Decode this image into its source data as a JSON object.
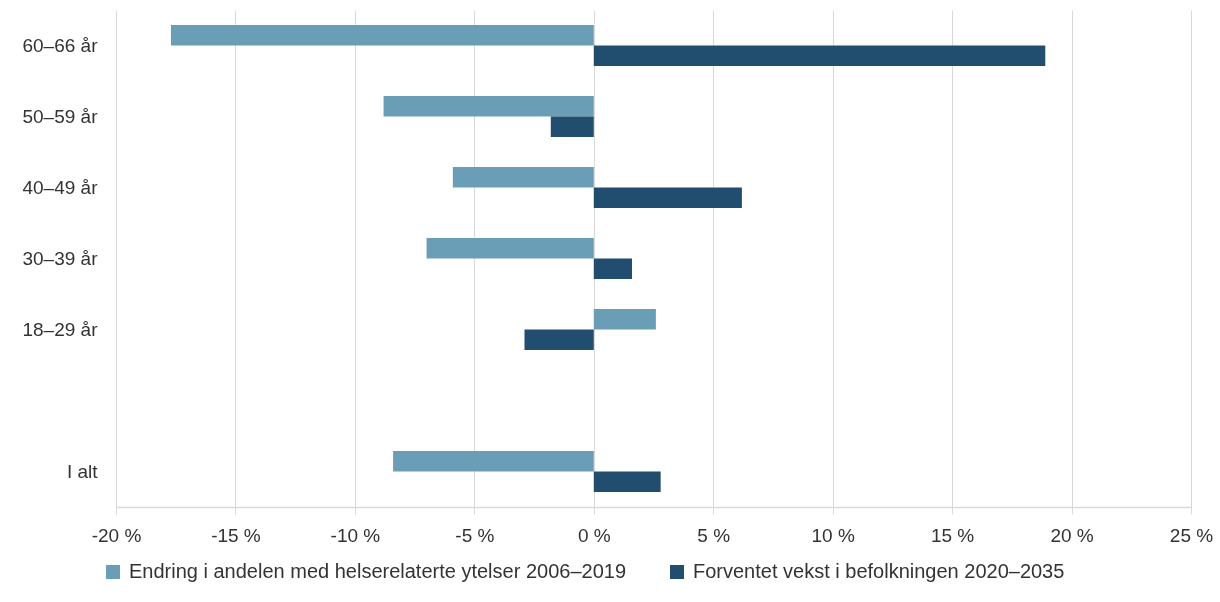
{
  "chart_data": {
    "type": "bar",
    "orientation": "horizontal",
    "categories": [
      "60–66 år",
      "50–59 år",
      "40–49 år",
      "30–39 år",
      "18–29 år",
      null,
      "I alt"
    ],
    "series": [
      {
        "name": "Endring i andelen med helserelaterte ytelser 2006–2019",
        "color": "#6a9db6",
        "values": [
          -17.7,
          -8.8,
          -5.9,
          -7.0,
          2.6,
          null,
          -8.4
        ]
      },
      {
        "name": "Forventet vekst i befolkningen 2020–2035",
        "color": "#214e6e",
        "values": [
          18.9,
          -1.8,
          6.2,
          1.6,
          -2.9,
          null,
          2.8
        ]
      }
    ],
    "xlim": [
      -20,
      25
    ],
    "xticks": [
      {
        "value": -20,
        "label": "-20 %"
      },
      {
        "value": -15,
        "label": "-15 %"
      },
      {
        "value": -10,
        "label": "-10 %"
      },
      {
        "value": -5,
        "label": "-5 %"
      },
      {
        "value": 0,
        "label": "0 %"
      },
      {
        "value": 5,
        "label": "5 %"
      },
      {
        "value": 10,
        "label": "10 %"
      },
      {
        "value": 15,
        "label": "15 %"
      },
      {
        "value": 20,
        "label": "20 %"
      },
      {
        "value": 25,
        "label": "25 %"
      }
    ],
    "grid": "x",
    "legend": "bottom"
  }
}
